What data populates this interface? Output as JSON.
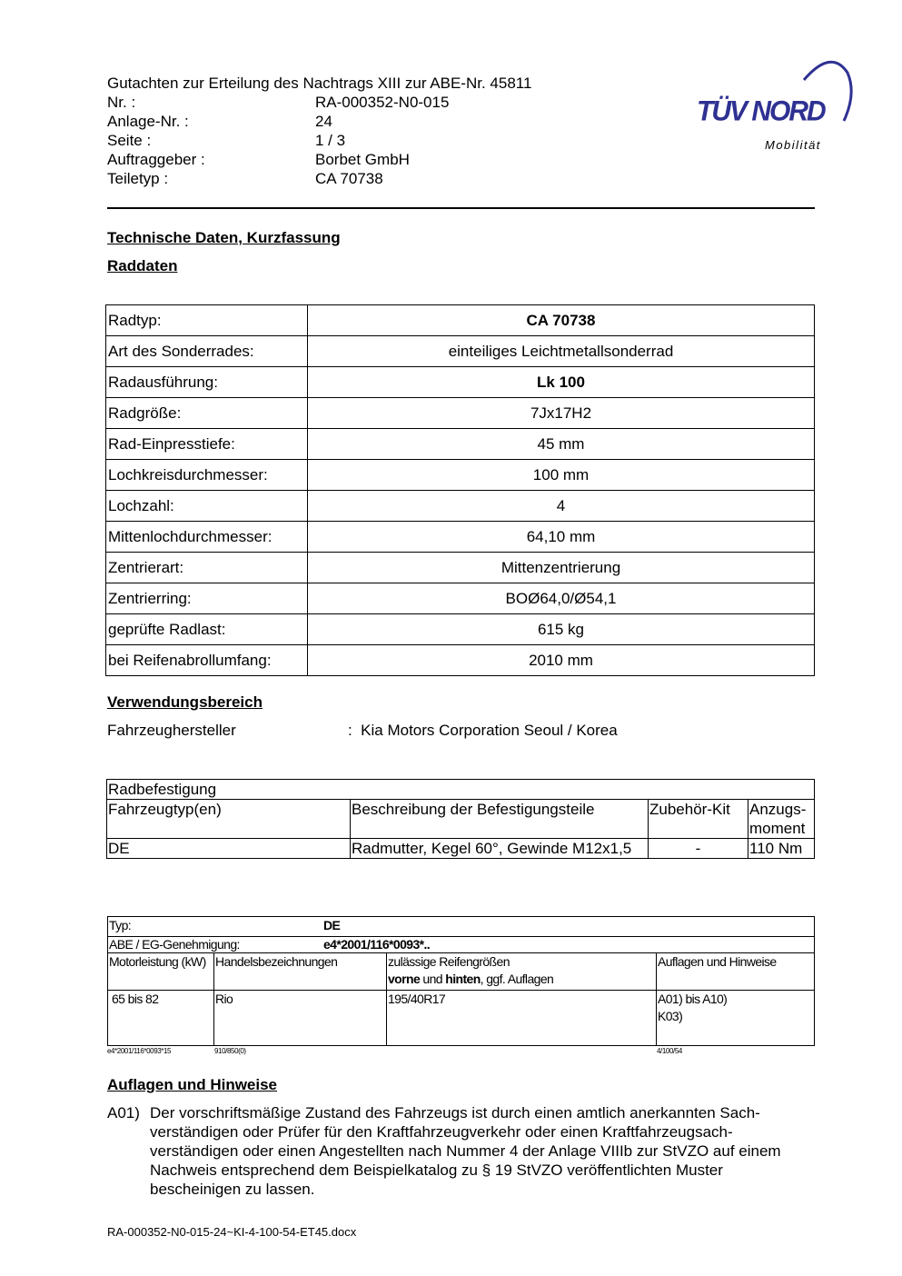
{
  "header": {
    "title": "Gutachten zur Erteilung des Nachtrags XIII zur ABE-Nr. 45811",
    "rows": [
      {
        "label": "Nr. :",
        "value": "RA-000352-N0-015"
      },
      {
        "label": "Anlage-Nr. :",
        "value": "24"
      },
      {
        "label": "Seite :",
        "value": "1 / 3"
      },
      {
        "label": "Auftraggeber :",
        "value": "Borbet GmbH"
      },
      {
        "label": "Teiletyp :",
        "value": "CA 70738"
      }
    ]
  },
  "logo": {
    "text": "TÜV NORD",
    "subtitle": "Mobilität",
    "color": "#2e3192"
  },
  "section1": "Technische Daten, Kurzfassung",
  "section2": "Raddaten",
  "raddaten": [
    {
      "label": "Radtyp:",
      "value": "CA 70738",
      "bold": true
    },
    {
      "label": "Art des Sonderrades:",
      "value": "einteiliges Leichtmetallsonderrad"
    },
    {
      "label": "Radausführung:",
      "value": "Lk 100",
      "bold": true
    },
    {
      "label": "Radgröße:",
      "value": "7Jx17H2"
    },
    {
      "label": "Rad-Einpresstiefe:",
      "value": "45 mm"
    },
    {
      "label": "Lochkreisdurchmesser:",
      "value": "100 mm"
    },
    {
      "label": "Lochzahl:",
      "value": "4"
    },
    {
      "label": "Mittenlochdurchmesser:",
      "value": "64,10 mm"
    },
    {
      "label": "Zentrierart:",
      "value": "Mittenzentrierung"
    },
    {
      "label": "Zentrierring:",
      "value": "BOØ64,0/Ø54,1"
    },
    {
      "label": "geprüfte Radlast:",
      "value": "615 kg"
    },
    {
      "label": "bei Reifenabrollumfang:",
      "value": "2010 mm"
    }
  ],
  "section3": "Verwendungsbereich",
  "hersteller": {
    "label": "Fahrzeughersteller",
    "value": ":  Kia Motors Corporation Seoul / Korea"
  },
  "befestigung": {
    "title": "Radbefestigung",
    "headers": [
      "Fahrzeugtyp(en)",
      "Beschreibung der Befestigungsteile",
      "Zubehör-Kit",
      "Anzugs-moment"
    ],
    "row": [
      "DE",
      "Radmutter, Kegel 60°, Gewinde M12x1,5",
      "-",
      "110 Nm"
    ]
  },
  "typ": {
    "typ_label": "Typ:",
    "typ_value": "DE",
    "abe_label": "ABE / EG-Genehmigung:",
    "abe_value": "e4*2001/116*0093*..",
    "headers": [
      "Motorleistung (kW)",
      "Handelsbezeichnungen",
      "zulässige Reifengrößen",
      "Auflagen und Hinweise"
    ],
    "header3_line2": {
      "b1": "vorne",
      "t1": " und ",
      "b2": "hinten",
      "t2": ", ggf. Auflagen"
    },
    "row": [
      "65 bis 82",
      "Rio",
      "195/40R17",
      "A01) bis A10)",
      "K03)"
    ],
    "footnotes": [
      "e4*2001/116*0093*15",
      "910/850(0)",
      "4/100/54"
    ]
  },
  "section4": "Auflagen und Hinweise",
  "a01": {
    "num": "A01)",
    "text": "Der vorschriftsmäßige Zustand des Fahrzeugs ist durch einen amtlich anerkannten Sach-verständigen oder Prüfer für den Kraftfahrzeugverkehr oder einen Kraftfahrzeugsach-verständigen oder einen Angestellten nach Nummer 4 der Anlage VIIIb zur StVZO auf einem Nachweis entsprechend dem Beispielkatalog zu § 19 StVZO veröffentlichten Muster bescheinigen zu lassen."
  },
  "footer": "RA-000352-N0-015-24~KI-4-100-54-ET45.docx"
}
